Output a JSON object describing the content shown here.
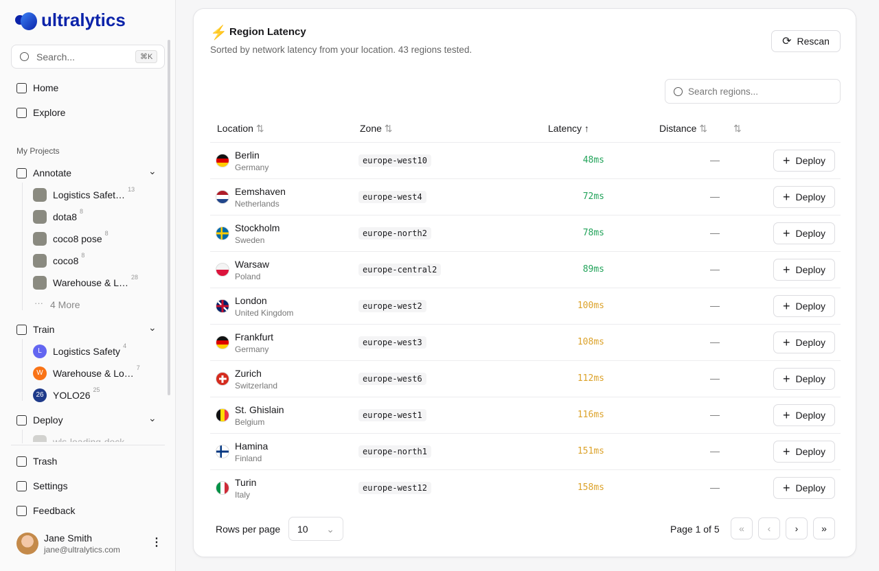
{
  "sidebar": {
    "logo": "ultralytics",
    "search": {
      "placeholder": "Search...",
      "shortcut": "⌘K"
    },
    "nav": [
      "Home",
      "Explore"
    ],
    "section": "My Projects",
    "groups": [
      {
        "label": "Annotate",
        "items": [
          {
            "label": "Logistics Safet…",
            "count": "13"
          },
          {
            "label": "dota8",
            "count": "8"
          },
          {
            "label": "coco8 pose",
            "count": "8"
          },
          {
            "label": "coco8",
            "count": "8"
          },
          {
            "label": "Warehouse & L…",
            "count": "28"
          }
        ],
        "more": "4 More"
      },
      {
        "label": "Train",
        "items": [
          {
            "label": "Logistics Safety",
            "count": "4",
            "badge": "L",
            "color": "#6366f1"
          },
          {
            "label": "Warehouse & Lo…",
            "count": "7",
            "badge": "W",
            "color": "#f97316"
          },
          {
            "label": "YOLO26",
            "count": "25",
            "badge": "26",
            "color": "#1e3a8a"
          }
        ]
      },
      {
        "label": "Deploy",
        "items": [
          {
            "label": "wls-loading-dock"
          }
        ]
      }
    ],
    "bottom": [
      "Trash",
      "Settings",
      "Feedback"
    ],
    "user": {
      "name": "Jane Smith",
      "email": "jane@ultralytics.com"
    }
  },
  "panel": {
    "title": "Region Latency",
    "subtitle": "Sorted by network latency from your location. 43 regions tested.",
    "button": "Rescan",
    "search": "Search regions...",
    "columns": [
      "Location",
      "Zone",
      "Latency",
      "Distance"
    ],
    "rows": [
      {
        "name": "Berlin",
        "country": "Germany",
        "zone": "europe-west10",
        "latency": "48ms",
        "color": "#22a35a",
        "distance": "—",
        "action": "Deploy"
      },
      {
        "name": "Eemshaven",
        "country": "Netherlands",
        "zone": "europe-west4",
        "latency": "72ms",
        "color": "#22a35a",
        "distance": "—",
        "action": "Deploy"
      },
      {
        "name": "Stockholm",
        "country": "Sweden",
        "zone": "europe-north2",
        "latency": "78ms",
        "color": "#22a35a",
        "distance": "—",
        "action": "Deploy"
      },
      {
        "name": "Warsaw",
        "country": "Poland",
        "zone": "europe-central2",
        "latency": "89ms",
        "color": "#22a35a",
        "distance": "—",
        "action": "Deploy"
      },
      {
        "name": "London",
        "country": "United Kingdom",
        "zone": "europe-west2",
        "latency": "100ms",
        "color": "#dca22a",
        "distance": "—",
        "action": "Deploy"
      },
      {
        "name": "Frankfurt",
        "country": "Germany",
        "zone": "europe-west3",
        "latency": "108ms",
        "color": "#dca22a",
        "distance": "—",
        "action": "Deploy"
      },
      {
        "name": "Zurich",
        "country": "Switzerland",
        "zone": "europe-west6",
        "latency": "112ms",
        "color": "#dca22a",
        "distance": "—",
        "action": "Deploy"
      },
      {
        "name": "St. Ghislain",
        "country": "Belgium",
        "zone": "europe-west1",
        "latency": "116ms",
        "color": "#dca22a",
        "distance": "—",
        "action": "Deploy"
      },
      {
        "name": "Hamina",
        "country": "Finland",
        "zone": "europe-north1",
        "latency": "151ms",
        "color": "#dca22a",
        "distance": "—",
        "action": "Deploy"
      },
      {
        "name": "Turin",
        "country": "Italy",
        "zone": "europe-west12",
        "latency": "158ms",
        "color": "#dca22a",
        "distance": "—",
        "action": "Deploy"
      }
    ],
    "footer": {
      "rows_label": "Rows per page",
      "rows_value": "10",
      "page": "Page 1 of 5"
    }
  }
}
